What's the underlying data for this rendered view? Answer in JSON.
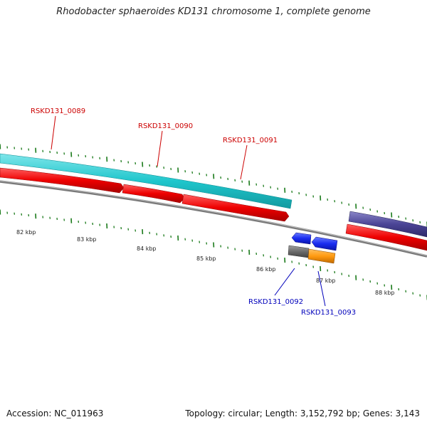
{
  "title": "Rhodobacter sphaeroides KD131 chromosome 1, complete genome",
  "footer": {
    "accession": "Accession: NC_011963",
    "summary": "Topology: circular; Length: 3,152,792 bp; Genes: 3,143"
  },
  "colors": {
    "forward_label": "#cc0000",
    "reverse_label": "#0000bb",
    "backbone": "#808080",
    "tick": "#1a7a1a"
  },
  "scale_labels": [
    "82 kbp",
    "83 kbp",
    "84 kbp",
    "85 kbp",
    "86 kbp",
    "87 kbp",
    "88 kbp"
  ],
  "gene_labels": [
    {
      "name": "RSKD131_0089",
      "strand": "forward"
    },
    {
      "name": "RSKD131_0090",
      "strand": "forward"
    },
    {
      "name": "RSKD131_0091",
      "strand": "forward"
    },
    {
      "name": "RSKD131_0092",
      "strand": "reverse"
    },
    {
      "name": "RSKD131_0093",
      "strand": "reverse"
    }
  ]
}
